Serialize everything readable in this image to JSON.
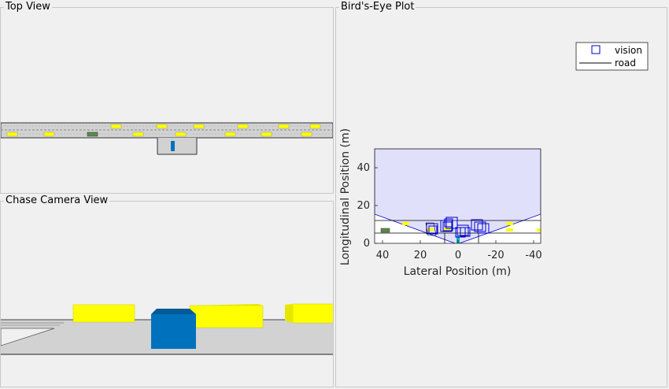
{
  "panels": {
    "top_view": {
      "title": "Top View"
    },
    "chase_view": {
      "title": "Chase Camera View"
    },
    "birds_eye": {
      "title": "Bird's-Eye Plot"
    }
  },
  "colors": {
    "road": "#d4d4d4",
    "vehicle_yellow": "#ffff00",
    "vehicle_green": "#5a8a4a",
    "ego_blue": "#0072bd",
    "coverage": "#e0e0fb",
    "detection": "#0000cc"
  },
  "plot": {
    "xlabel": "Lateral Position (m)",
    "ylabel": "Longitudinal Position (m)",
    "x_ticks": [
      "40",
      "20",
      "0",
      "-20",
      "-40"
    ],
    "y_ticks": [
      "0",
      "20",
      "40"
    ],
    "xlim": [
      40,
      -40
    ],
    "ylim": [
      0,
      50
    ],
    "coverage_range_m": 50,
    "legend": [
      {
        "label": "vision",
        "icon": "square-marker-icon"
      },
      {
        "label": "road",
        "icon": "line-marker-icon"
      }
    ]
  }
}
